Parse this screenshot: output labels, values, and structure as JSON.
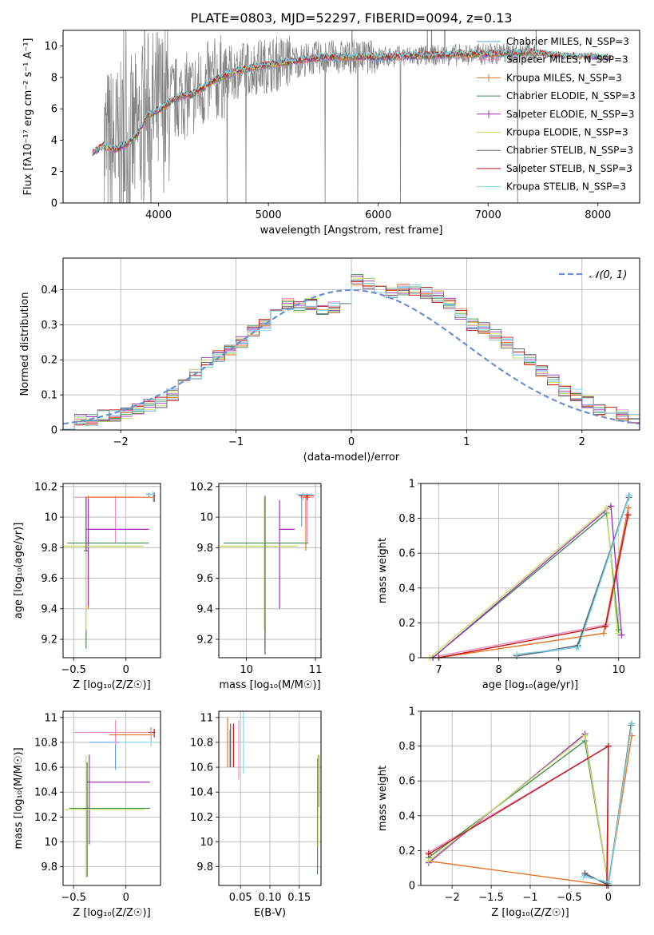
{
  "figure": {
    "title": "PLATE=0803, MJD=52297, FIBERID=0094, z=0.13"
  },
  "colors": {
    "Chabrier MILES": "#5fa0df",
    "Salpeter MILES": "#f08cc0",
    "Kroupa MILES": "#e8762a",
    "Chabrier ELODIE": "#3f8f4f",
    "Salpeter ELODIE": "#a030c0",
    "Kroupa ELODIE": "#c8e060",
    "Chabrier STELIB": "#606060",
    "Salpeter STELIB": "#c01818",
    "Kroupa STELIB": "#80d8e0",
    "data": "#808080",
    "normal": "#6a8fd8"
  },
  "chart_data": [
    {
      "id": "spectrum",
      "type": "line",
      "xlabel": "wavelength [Angstrom, rest frame]",
      "ylabel": "Flux [fλ10⁻¹⁷ erg cm⁻² s⁻¹ A⁻¹]",
      "xlim": [
        3130,
        8380
      ],
      "ylim": [
        0,
        11
      ],
      "xticks": [
        4000,
        5000,
        6000,
        7000,
        8000
      ],
      "yticks": [
        0,
        2,
        4,
        6,
        8,
        10
      ],
      "grid": false,
      "legend_position": "top-right",
      "legend": [
        "Chabrier MILES, N_SSP=3",
        "Salpeter MILES, N_SSP=3",
        "Kroupa MILES, N_SSP=3",
        "Chabrier ELODIE, N_SSP=3",
        "Salpeter ELODIE, N_SSP=3",
        "Kroupa ELODIE, N_SSP=3",
        "Chabrier STELIB, N_SSP=3",
        "Salpeter STELIB, N_SSP=3",
        "Kroupa STELIB, N_SSP=3"
      ],
      "model_trend": {
        "x": [
          3400,
          3500,
          3600,
          3700,
          3800,
          3900,
          4000,
          4100,
          4200,
          4300,
          4400,
          4500,
          4700,
          5000,
          5200,
          5500,
          5800,
          6000,
          6500,
          7000,
          7400,
          7600,
          7800,
          8000,
          8120
        ],
        "y": [
          3.2,
          3.6,
          3.4,
          3.7,
          4.3,
          5.6,
          5.9,
          6.4,
          6.8,
          6.9,
          7.3,
          7.8,
          8.4,
          8.8,
          9.0,
          9.3,
          9.3,
          9.3,
          9.4,
          9.5,
          9.6,
          9.4,
          9.3,
          9.3,
          9.2
        ]
      },
      "data_range": [
        3500,
        7450
      ]
    },
    {
      "id": "residuals",
      "type": "histogram",
      "xlabel": "(data-model)/error",
      "ylabel": "Normed distribution",
      "xlim": [
        -2.5,
        2.5
      ],
      "ylim": [
        0,
        0.49
      ],
      "xticks": [
        -2,
        -1,
        0,
        1,
        2
      ],
      "yticks": [
        0.0,
        0.1,
        0.2,
        0.3,
        0.4
      ],
      "grid": true,
      "legend_position": "top-right",
      "legend": [
        "𝒩(0, 1)"
      ],
      "bin_width": 0.1,
      "bin_start": -2.5,
      "base_values": [
        0.02,
        0.03,
        0.03,
        0.04,
        0.04,
        0.05,
        0.06,
        0.07,
        0.08,
        0.1,
        0.13,
        0.16,
        0.19,
        0.21,
        0.23,
        0.25,
        0.28,
        0.3,
        0.33,
        0.36,
        0.35,
        0.36,
        0.34,
        0.35,
        0.37,
        0.43,
        0.42,
        0.4,
        0.39,
        0.4,
        0.4,
        0.39,
        0.38,
        0.36,
        0.33,
        0.3,
        0.29,
        0.27,
        0.25,
        0.22,
        0.2,
        0.17,
        0.14,
        0.11,
        0.1,
        0.08,
        0.06,
        0.05,
        0.04,
        0.03
      ]
    },
    {
      "id": "age-vs-Z",
      "type": "errorbar",
      "xlabel": "Z [log₁₀(Z/Z☉)]",
      "ylabel": "age  [log₁₀(age/yr)]",
      "xlim": [
        -0.6,
        0.33
      ],
      "ylim": [
        9.08,
        10.22
      ],
      "xticks": [
        -0.5,
        0.0
      ],
      "yticks": [
        9.2,
        9.4,
        9.6,
        9.8,
        10.0,
        10.2
      ],
      "grid": true,
      "points": [
        {
          "model": "Chabrier MILES",
          "x": 0.22,
          "xerr": [
            0.03,
            0.03
          ],
          "y": 10.15,
          "yerr": [
            0.02,
            0.01
          ]
        },
        {
          "model": "Salpeter MILES",
          "x": -0.1,
          "xerr": [
            0.4,
            0.2
          ],
          "y": 10.13,
          "yerr": [
            0.3,
            0.01
          ]
        },
        {
          "model": "Kroupa MILES",
          "x": -0.36,
          "xerr": [
            0.02,
            0.62
          ],
          "y": 10.13,
          "yerr": [
            0.73,
            0.01
          ]
        },
        {
          "model": "Chabrier ELODIE",
          "x": -0.38,
          "xerr": [
            0.18,
            0.6
          ],
          "y": 9.83,
          "yerr": [
            0.69,
            0.3
          ]
        },
        {
          "model": "Salpeter ELODIE",
          "x": -0.36,
          "xerr": [
            0.02,
            0.58
          ],
          "y": 9.92,
          "yerr": [
            0.5,
            0.2
          ]
        },
        {
          "model": "Kroupa ELODIE",
          "x": -0.38,
          "xerr": [
            0.22,
            0.55
          ],
          "y": 9.81,
          "yerr": [
            0.55,
            0.32
          ]
        },
        {
          "model": "Chabrier STELIB",
          "x": -0.38,
          "xerr": [
            0.02,
            0.02
          ],
          "y": 9.78,
          "yerr": [
            0.0,
            0.35
          ]
        },
        {
          "model": "Salpeter STELIB",
          "x": 0.27,
          "xerr": [
            0.01,
            0.01
          ],
          "y": 10.14,
          "yerr": [
            0.04,
            0.02
          ]
        },
        {
          "model": "Kroupa STELIB",
          "x": 0.26,
          "xerr": [
            0.05,
            0.02
          ],
          "y": 10.15,
          "yerr": [
            0.05,
            0.02
          ]
        }
      ]
    },
    {
      "id": "age-vs-mass",
      "type": "errorbar",
      "xlabel": "mass [log₁₀(M/M☉)]",
      "ylabel": "",
      "xlim": [
        9.6,
        11.08
      ],
      "ylim": [
        9.08,
        10.22
      ],
      "xticks": [
        10,
        11
      ],
      "yticks": [
        9.2,
        9.4,
        9.6,
        9.8,
        10.0,
        10.2
      ],
      "grid": true,
      "points": [
        {
          "model": "Chabrier MILES",
          "x": 10.8,
          "xerr": [
            0.05,
            0.1
          ],
          "y": 10.14,
          "yerr": [
            0.2,
            0.01
          ]
        },
        {
          "model": "Salpeter MILES",
          "x": 10.88,
          "xerr": [
            0.1,
            0.1
          ],
          "y": 10.13,
          "yerr": [
            0.3,
            0.01
          ]
        },
        {
          "model": "Kroupa MILES",
          "x": 10.86,
          "xerr": [
            0.05,
            0.06
          ],
          "y": 10.13,
          "yerr": [
            0.35,
            0.01
          ]
        },
        {
          "model": "Chabrier ELODIE",
          "x": 10.27,
          "xerr": [
            0.6,
            0.63
          ],
          "y": 9.83,
          "yerr": [
            0.69,
            0.31
          ]
        },
        {
          "model": "Salpeter ELODIE",
          "x": 10.48,
          "xerr": [
            0.0,
            0.22
          ],
          "y": 9.92,
          "yerr": [
            0.52,
            0.19
          ]
        },
        {
          "model": "Kroupa ELODIE",
          "x": 10.26,
          "xerr": [
            0.64,
            0.48
          ],
          "y": 9.81,
          "yerr": [
            0.55,
            0.32
          ]
        },
        {
          "model": "Chabrier STELIB",
          "x": 10.27,
          "xerr": [
            0.0,
            0.0
          ],
          "y": 9.78,
          "yerr": [
            0.68,
            0.35
          ]
        },
        {
          "model": "Salpeter STELIB",
          "x": 10.88,
          "xerr": [
            0.12,
            0.1
          ],
          "y": 10.14,
          "yerr": [
            0.03,
            0.01
          ]
        },
        {
          "model": "Kroupa STELIB",
          "x": 10.82,
          "xerr": [
            0.1,
            0.15
          ],
          "y": 10.15,
          "yerr": [
            0.04,
            0.01
          ]
        }
      ]
    },
    {
      "id": "weight-vs-age",
      "type": "line",
      "xlabel": "age  [log₁₀(age/yr)]",
      "ylabel": "mass weight",
      "xlim": [
        6.7,
        10.35
      ],
      "ylim": [
        0.0,
        1.0
      ],
      "xticks": [
        7,
        8,
        9,
        10
      ],
      "yticks": [
        0.0,
        0.2,
        0.4,
        0.6,
        0.8,
        1.0
      ],
      "grid": true,
      "series": [
        {
          "model": "Chabrier MILES",
          "x": [
            8.3,
            9.3,
            10.17
          ],
          "y": [
            0.01,
            0.06,
            0.93
          ]
        },
        {
          "model": "Salpeter MILES",
          "x": [
            7.0,
            9.8,
            10.15
          ],
          "y": [
            0.01,
            0.19,
            0.8
          ]
        },
        {
          "model": "Kroupa MILES",
          "x": [
            7.0,
            9.75,
            10.16
          ],
          "y": [
            0.0,
            0.14,
            0.86
          ]
        },
        {
          "model": "Chabrier ELODIE",
          "x": [
            6.9,
            9.8,
            10.0
          ],
          "y": [
            0.0,
            0.83,
            0.16
          ]
        },
        {
          "model": "Salpeter ELODIE",
          "x": [
            6.9,
            9.87,
            10.05
          ],
          "y": [
            0.0,
            0.87,
            0.13
          ]
        },
        {
          "model": "Kroupa ELODIE",
          "x": [
            6.85,
            9.8,
            9.98
          ],
          "y": [
            0.0,
            0.86,
            0.14
          ]
        },
        {
          "model": "Chabrier STELIB",
          "x": [
            8.3,
            9.32,
            10.17
          ],
          "y": [
            0.01,
            0.07,
            0.92
          ]
        },
        {
          "model": "Salpeter STELIB",
          "x": [
            7.0,
            9.78,
            10.16
          ],
          "y": [
            0.0,
            0.18,
            0.82
          ]
        },
        {
          "model": "Kroupa STELIB",
          "x": [
            8.3,
            9.33,
            10.18
          ],
          "y": [
            0.02,
            0.06,
            0.93
          ]
        }
      ]
    },
    {
      "id": "mass-vs-Z",
      "type": "errorbar",
      "xlabel": "Z [log₁₀(Z/Z☉)]",
      "ylabel": "mass [log₁₀(M/M☉)]",
      "xlim": [
        -0.6,
        0.33
      ],
      "ylim": [
        9.65,
        11.05
      ],
      "xticks": [
        -0.5,
        0.0
      ],
      "yticks": [
        9.8,
        10.0,
        10.2,
        10.4,
        10.6,
        10.8,
        11.0
      ],
      "grid": true,
      "points": [
        {
          "model": "Chabrier MILES",
          "x": -0.1,
          "xerr": [
            0.25,
            0.3
          ],
          "y": 10.8,
          "yerr": [
            0.22,
            0.1
          ]
        },
        {
          "model": "Salpeter MILES",
          "x": -0.1,
          "xerr": [
            0.4,
            0.35
          ],
          "y": 10.88,
          "yerr": [
            0.1,
            0.1
          ]
        },
        {
          "model": "Kroupa MILES",
          "x": 0.24,
          "xerr": [
            0.4,
            0.02
          ],
          "y": 10.86,
          "yerr": [
            0.04,
            0.06
          ]
        },
        {
          "model": "Chabrier ELODIE",
          "x": -0.37,
          "xerr": [
            0.17,
            0.6
          ],
          "y": 10.27,
          "yerr": [
            0.55,
            0.37
          ]
        },
        {
          "model": "Salpeter ELODIE",
          "x": -0.35,
          "xerr": [
            0.02,
            0.58
          ],
          "y": 10.48,
          "yerr": [
            0.5,
            0.22
          ]
        },
        {
          "model": "Kroupa ELODIE",
          "x": -0.38,
          "xerr": [
            0.2,
            0.56
          ],
          "y": 10.26,
          "yerr": [
            0.55,
            0.44
          ]
        },
        {
          "model": "Chabrier STELIB",
          "x": -0.38,
          "xerr": [
            0.02,
            0.02
          ],
          "y": 10.27,
          "yerr": [
            0.0,
            0.0
          ]
        },
        {
          "model": "Salpeter STELIB",
          "x": 0.27,
          "xerr": [
            0.05,
            0.01
          ],
          "y": 10.88,
          "yerr": [
            0.04,
            0.03
          ]
        },
        {
          "model": "Kroupa STELIB",
          "x": 0.24,
          "xerr": [
            0.3,
            0.04
          ],
          "y": 10.8,
          "yerr": [
            0.03,
            0.1
          ]
        }
      ]
    },
    {
      "id": "mass-vs-ebv",
      "type": "errorbar",
      "xlabel": "E(B-V)",
      "ylabel": "",
      "xlim": [
        0.013,
        0.187
      ],
      "ylim": [
        9.65,
        11.05
      ],
      "xticks": [
        0.05,
        0.1,
        0.15
      ],
      "xticklabels": [
        "0.05",
        "0.10",
        "0.15"
      ],
      "yticks": [
        9.8,
        10.0,
        10.2,
        10.4,
        10.6,
        10.8,
        11.0
      ],
      "grid": true,
      "points": [
        {
          "model": "Chabrier MILES",
          "x": 0.032,
          "yerr": [
            0.2,
            0.1
          ],
          "y": 10.8
        },
        {
          "model": "Salpeter MILES",
          "x": 0.047,
          "yerr": [
            0.3,
            0.18
          ],
          "y": 10.8
        },
        {
          "model": "Kroupa MILES",
          "x": 0.028,
          "yerr": [
            0.26,
            0.14
          ],
          "y": 10.86
        },
        {
          "model": "Chabrier ELODIE",
          "x": 0.181,
          "yerr": [
            0.53,
            0.4
          ],
          "y": 10.27
        },
        {
          "model": "Salpeter ELODIE",
          "x": 0.183,
          "yerr": [
            0.2,
            0.22
          ],
          "y": 10.48
        },
        {
          "model": "Kroupa ELODIE",
          "x": 0.182,
          "yerr": [
            0.3,
            0.44
          ],
          "y": 10.26
        },
        {
          "model": "Chabrier STELIB",
          "x": 0.033,
          "yerr": [
            0.25,
            0.1
          ],
          "y": 10.85
        },
        {
          "model": "Salpeter STELIB",
          "x": 0.038,
          "yerr": [
            0.25,
            0.1
          ],
          "y": 10.85
        },
        {
          "model": "Kroupa STELIB",
          "x": 0.055,
          "yerr": [
            0.3,
            0.2
          ],
          "y": 10.85
        }
      ]
    },
    {
      "id": "weight-vs-Z",
      "type": "line",
      "xlabel": "Z [log₁₀(Z/Z☉)]",
      "ylabel": "mass weight",
      "xlim": [
        -2.4,
        0.4
      ],
      "ylim": [
        0.0,
        1.0
      ],
      "xticks": [
        -2.0,
        -1.5,
        -1.0,
        -0.5,
        0.0
      ],
      "yticks": [
        0.0,
        0.2,
        0.4,
        0.6,
        0.8,
        1.0
      ],
      "grid": true,
      "series": [
        {
          "model": "Chabrier MILES",
          "x": [
            -0.3,
            0.0,
            0.3
          ],
          "y": [
            0.06,
            0.01,
            0.93
          ]
        },
        {
          "model": "Salpeter MILES",
          "x": [
            -2.3,
            0.0,
            -0.02
          ],
          "y": [
            0.19,
            0.8,
            0.0
          ]
        },
        {
          "model": "Kroupa MILES",
          "x": [
            -2.3,
            0.0,
            0.3
          ],
          "y": [
            0.14,
            0.0,
            0.86
          ]
        },
        {
          "model": "Chabrier ELODIE",
          "x": [
            -2.3,
            -0.3,
            0.0
          ],
          "y": [
            0.16,
            0.83,
            0.0
          ]
        },
        {
          "model": "Salpeter ELODIE",
          "x": [
            -2.3,
            -0.3,
            0.0
          ],
          "y": [
            0.13,
            0.87,
            0.0
          ]
        },
        {
          "model": "Kroupa ELODIE",
          "x": [
            -2.3,
            -0.3,
            0.0
          ],
          "y": [
            0.14,
            0.86,
            0.0
          ]
        },
        {
          "model": "Chabrier STELIB",
          "x": [
            -0.3,
            0.0,
            0.29
          ],
          "y": [
            0.07,
            0.0,
            0.92
          ]
        },
        {
          "model": "Salpeter STELIB",
          "x": [
            -2.3,
            0.0,
            -0.02
          ],
          "y": [
            0.18,
            0.8,
            0.0
          ]
        },
        {
          "model": "Kroupa STELIB",
          "x": [
            -0.32,
            0.01,
            0.3
          ],
          "y": [
            0.05,
            0.02,
            0.93
          ]
        }
      ]
    }
  ]
}
